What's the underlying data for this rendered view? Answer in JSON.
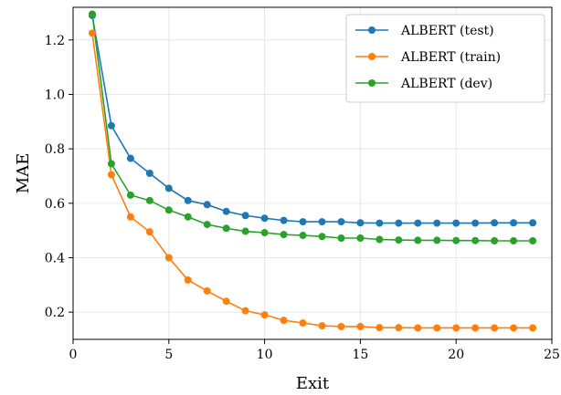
{
  "chart_data": {
    "type": "line",
    "title": "",
    "xlabel": "Exit",
    "ylabel": "MAE",
    "xlim": [
      0,
      25
    ],
    "ylim": [
      0.1,
      1.32
    ],
    "xticks": [
      0,
      5,
      10,
      15,
      20,
      25
    ],
    "yticks": [
      0.2,
      0.4,
      0.6,
      0.8,
      1.0,
      1.2
    ],
    "ytick_labels": [
      "0.2",
      "0.4",
      "0.6",
      "0.8",
      "1.0",
      "1.2"
    ],
    "grid": true,
    "legend_position": "top-right",
    "x": [
      1,
      2,
      3,
      4,
      5,
      6,
      7,
      8,
      9,
      10,
      11,
      12,
      13,
      14,
      15,
      16,
      17,
      18,
      19,
      20,
      21,
      22,
      23,
      24
    ],
    "series": [
      {
        "name": "ALBERT (test)",
        "color": "#1f77b4",
        "values": [
          1.29,
          0.885,
          0.765,
          0.71,
          0.655,
          0.61,
          0.595,
          0.57,
          0.555,
          0.545,
          0.537,
          0.532,
          0.532,
          0.532,
          0.528,
          0.527,
          0.527,
          0.527,
          0.527,
          0.527,
          0.527,
          0.528,
          0.528,
          0.528
        ]
      },
      {
        "name": "ALBERT (train)",
        "color": "#ff7f0e",
        "values": [
          1.225,
          0.705,
          0.55,
          0.495,
          0.4,
          0.318,
          0.278,
          0.24,
          0.205,
          0.19,
          0.17,
          0.16,
          0.15,
          0.147,
          0.147,
          0.143,
          0.143,
          0.142,
          0.142,
          0.142,
          0.142,
          0.142,
          0.142,
          0.142
        ]
      },
      {
        "name": "ALBERT (dev)",
        "color": "#2ca02c",
        "values": [
          1.295,
          0.745,
          0.63,
          0.61,
          0.575,
          0.55,
          0.522,
          0.508,
          0.497,
          0.492,
          0.485,
          0.482,
          0.478,
          0.472,
          0.472,
          0.467,
          0.465,
          0.464,
          0.464,
          0.463,
          0.463,
          0.462,
          0.462,
          0.462
        ]
      }
    ]
  }
}
